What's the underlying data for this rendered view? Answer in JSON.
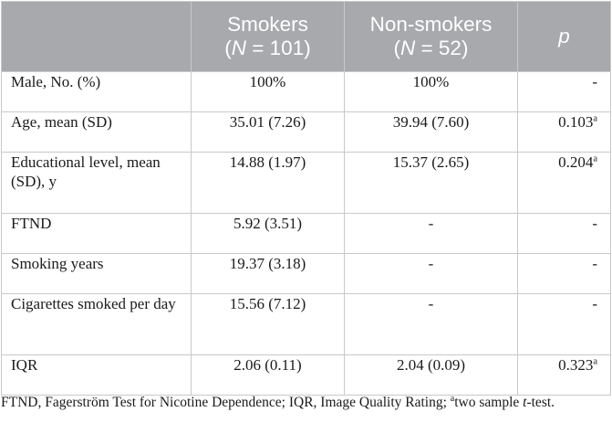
{
  "header": {
    "col1": "",
    "smokers_line1": "Smokers",
    "smokers_n_prefix": "(",
    "smokers_n_var": "N",
    "smokers_n_rest": " = 101)",
    "nonsmokers_line1": "Non-smokers",
    "nonsmokers_n_prefix": "(",
    "nonsmokers_n_var": "N",
    "nonsmokers_n_rest": " = 52)",
    "p": "p"
  },
  "rows": [
    {
      "label": "Male, No. (%)",
      "smokers": "100%",
      "nonsmokers": "100%",
      "p": "-",
      "p_sup": ""
    },
    {
      "label": "Age, mean (SD)",
      "smokers": "35.01 (7.26)",
      "nonsmokers": "39.94 (7.60)",
      "p": "0.103",
      "p_sup": "a"
    },
    {
      "label": "Educational level, mean (SD), y",
      "smokers": "14.88 (1.97)",
      "nonsmokers": "15.37 (2.65)",
      "p": "0.204",
      "p_sup": "a"
    },
    {
      "label": "FTND",
      "smokers": "5.92 (3.51)",
      "nonsmokers": "-",
      "p": "-",
      "p_sup": ""
    },
    {
      "label": "Smoking years",
      "smokers": "19.37 (3.18)",
      "nonsmokers": "-",
      "p": "-",
      "p_sup": ""
    },
    {
      "label": "Cigarettes smoked per day",
      "smokers": "15.56 (7.12)",
      "nonsmokers": "-",
      "p": "-",
      "p_sup": ""
    },
    {
      "label": "IQR",
      "smokers": "2.06 (0.11)",
      "nonsmokers": "2.04 (0.09)",
      "p": "0.323",
      "p_sup": "a"
    }
  ],
  "footnote": {
    "text1": "FTND, Fagerström Test for Nicotine Dependence; IQR, Image Quality Rating; ",
    "sup": "a",
    "text2": "two sample ",
    "t": "t",
    "text3": "-test."
  },
  "colors": {
    "header_bg": "#a7a9ac",
    "header_text": "#ffffff",
    "border": "#c9c9c9"
  }
}
